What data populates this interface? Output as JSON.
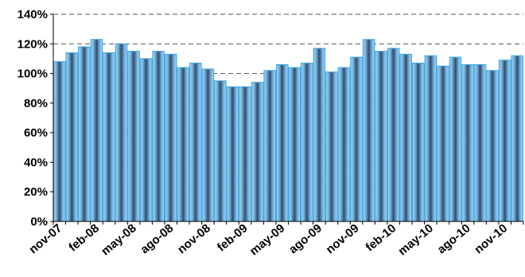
{
  "chart_data": {
    "type": "bar",
    "title": "",
    "xlabel": "",
    "ylabel": "",
    "ylim": [
      0,
      140
    ],
    "y_ticks": [
      "0%",
      "20%",
      "40%",
      "60%",
      "80%",
      "100%",
      "120%",
      "140%"
    ],
    "y_tick_values": [
      0,
      20,
      40,
      60,
      80,
      100,
      120,
      140
    ],
    "gridlines": "dashed horizontal",
    "categories": [
      "nov-07",
      "dic-07",
      "ene-08",
      "feb-08",
      "mar-08",
      "abr-08",
      "may-08",
      "jun-08",
      "jul-08",
      "ago-08",
      "sep-08",
      "oct-08",
      "nov-08",
      "dic-08",
      "ene-09",
      "feb-09",
      "mar-09",
      "abr-09",
      "may-09",
      "jun-09",
      "jul-09",
      "ago-09",
      "sep-09",
      "oct-09",
      "nov-09",
      "dic-09",
      "ene-10",
      "feb-10",
      "mar-10",
      "abr-10",
      "may-10",
      "jun-10",
      "jul-10",
      "ago-10",
      "sep-10",
      "oct-10",
      "nov-10",
      "dic-10"
    ],
    "visible_x_labels": [
      "nov-07",
      "feb-08",
      "may-08",
      "ago-08",
      "nov-08",
      "feb-09",
      "may-09",
      "ago-09",
      "nov-09",
      "feb-10",
      "may-10",
      "ago-10",
      "nov-10"
    ],
    "values": [
      108,
      114,
      118,
      123,
      114,
      120,
      115,
      110,
      115,
      113,
      104,
      107,
      103,
      95,
      91,
      91,
      94,
      102,
      106,
      104,
      107,
      117,
      101,
      104,
      111,
      123,
      115,
      117,
      113,
      107,
      112,
      105,
      111,
      106,
      106,
      102,
      109,
      112
    ],
    "bar_color": "#8ecbf2"
  }
}
